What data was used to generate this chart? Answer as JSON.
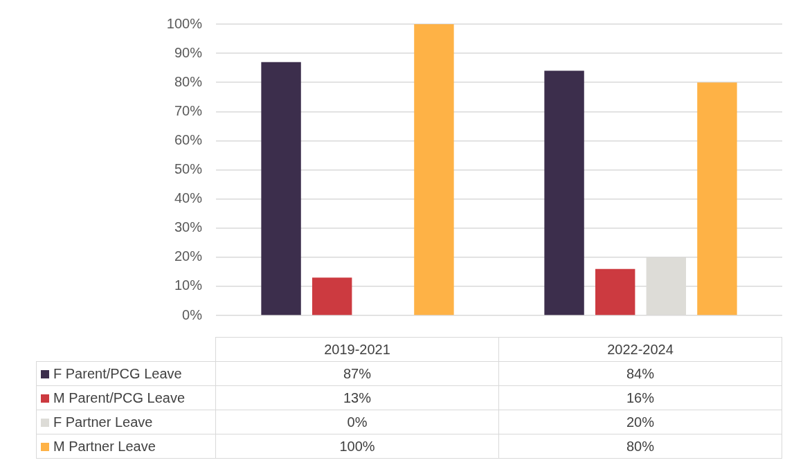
{
  "chart_data": {
    "type": "bar",
    "categories": [
      "2019-2021",
      "2022-2024"
    ],
    "series": [
      {
        "name": "F Parent/PCG Leave",
        "color": "#3c2e4c",
        "values": [
          87,
          84
        ],
        "value_labels": [
          "87%",
          "84%"
        ]
      },
      {
        "name": "M Parent/PCG Leave",
        "color": "#cc3a40",
        "values": [
          13,
          16
        ],
        "value_labels": [
          "13%",
          "16%"
        ]
      },
      {
        "name": "F Partner Leave",
        "color": "#dddcd7",
        "values": [
          0,
          20
        ],
        "value_labels": [
          "0%",
          "20%"
        ]
      },
      {
        "name": "M Partner Leave",
        "color": "#feb246",
        "values": [
          100,
          80
        ],
        "value_labels": [
          "100%",
          "80%"
        ]
      }
    ],
    "ylim": [
      0,
      100
    ],
    "yticks": [
      {
        "value": 0,
        "label": "0%"
      },
      {
        "value": 10,
        "label": "10%"
      },
      {
        "value": 20,
        "label": "20%"
      },
      {
        "value": 30,
        "label": "30%"
      },
      {
        "value": 40,
        "label": "40%"
      },
      {
        "value": 50,
        "label": "50%"
      },
      {
        "value": 60,
        "label": "60%"
      },
      {
        "value": 70,
        "label": "70%"
      },
      {
        "value": 80,
        "label": "80%"
      },
      {
        "value": 90,
        "label": "90%"
      },
      {
        "value": 100,
        "label": "100%"
      }
    ],
    "grid": "y",
    "legend": "bottom left"
  }
}
